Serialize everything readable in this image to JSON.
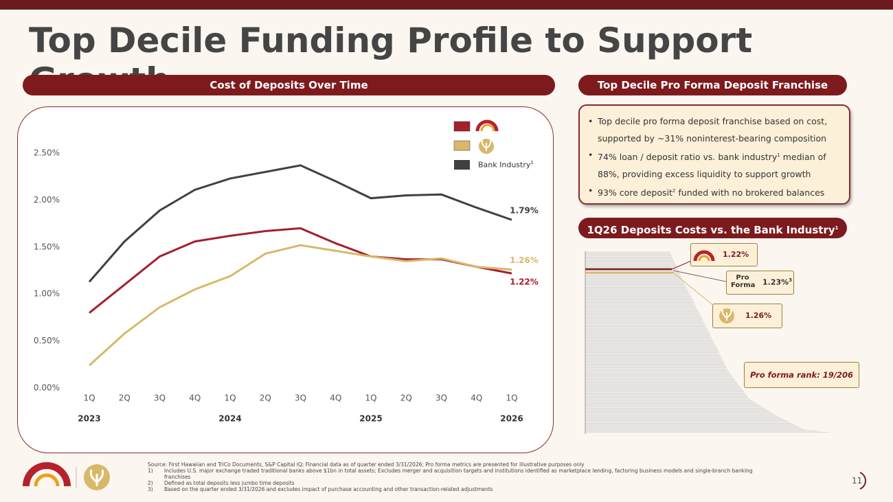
{
  "header": {
    "title": "Top Decile Funding Profile to Support Growth"
  },
  "left_panel": {
    "heading": "Cost of Deposits Over Time"
  },
  "chart_data": {
    "type": "line",
    "categories": [
      "1Q",
      "2Q",
      "3Q",
      "4Q",
      "1Q",
      "2Q",
      "3Q",
      "4Q",
      "1Q",
      "2Q",
      "3Q",
      "4Q",
      "1Q"
    ],
    "x_groups": [
      "2023",
      "2024",
      "2025",
      "2026"
    ],
    "ylim": [
      0,
      2.5
    ],
    "yticks": [
      {
        "value": 0,
        "label": "0.00%"
      },
      {
        "value": 0.5,
        "label": "0.50%"
      },
      {
        "value": 1,
        "label": "1.00%"
      },
      {
        "value": 1.5,
        "label": "1.50%"
      },
      {
        "value": 2,
        "label": "2.00%"
      },
      {
        "value": 2.5,
        "label": "2.50%"
      }
    ],
    "grid": false,
    "series": [
      {
        "color": "#a51f2d",
        "values": [
          0.8,
          1.1,
          1.4,
          1.56,
          1.62,
          1.67,
          1.7,
          1.54,
          1.4,
          1.37,
          1.37,
          1.29,
          1.22
        ],
        "value_labels": [
          null,
          null,
          null,
          null,
          null,
          null,
          null,
          null,
          null,
          null,
          null,
          null,
          "1.22%"
        ]
      },
      {
        "color": "#d8b868",
        "values": [
          0.24,
          0.58,
          0.86,
          1.05,
          1.19,
          1.43,
          1.52,
          1.46,
          1.4,
          1.35,
          1.38,
          1.29,
          1.26
        ],
        "value_labels": [
          null,
          null,
          null,
          null,
          null,
          null,
          null,
          null,
          null,
          null,
          null,
          null,
          "1.26%"
        ]
      },
      {
        "name": "Bank Industry",
        "name_note": "1",
        "color": "#404040",
        "values": [
          1.13,
          1.56,
          1.89,
          2.11,
          2.23,
          2.3,
          2.37,
          2.2,
          2.02,
          2.05,
          2.06,
          1.92,
          1.79
        ],
        "value_labels": [
          null,
          null,
          null,
          null,
          null,
          null,
          null,
          null,
          null,
          null,
          null,
          null,
          "1.79%"
        ]
      }
    ]
  },
  "franchise": {
    "heading": "Top Decile Pro Forma Deposit Franchise",
    "bullets": [
      {
        "text": "Top decile pro forma deposit franchise based on cost, supported by ~31% noninterest-bearing composition"
      },
      {
        "text": "74% loan / deposit ratio vs. bank industry",
        "note": "1",
        "text_after": "median of 88%, providing excess liquidity to support growth"
      },
      {
        "text": "93% core deposit",
        "note": "2",
        "text_after": "funded with no brokered balances"
      }
    ]
  },
  "ranking": {
    "heading": "1Q26 Deposits Costs vs. the Bank Industry",
    "heading_note": "1",
    "red_value": "1.22%",
    "pro_forma_label": "Pro Forma",
    "pro_forma_value": "1.23%",
    "pro_forma_note": "3",
    "gold_value": "1.26%",
    "rank": "Pro forma rank: 19/206"
  },
  "footer": {
    "source": "Source: First Hawaiian and TriCo Documents, S&P Capital IQ; Financial data as of quarter ended 3/31/2026; Pro forma metrics are presented for illustrative purposes only",
    "notes": [
      {
        "num": "1)",
        "text": "Includes U.S. major exchange traded traditional banks above $1bn in total assets; Excludes merger and acquisition targets and institutions identified as marketplace lending, factoring business models and single-branch banking franchises"
      },
      {
        "num": "2)",
        "text": "Defined as total deposits less jumbo time deposits"
      },
      {
        "num": "3)",
        "text": "Based on the quarter ended 3/31/2026 and excludes impact of purchase accounting and other transaction-related adjustments"
      }
    ],
    "page": "11"
  }
}
